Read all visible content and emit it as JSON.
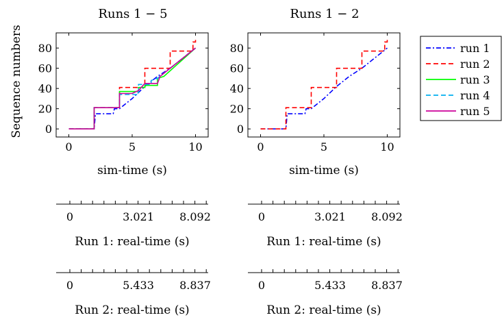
{
  "chart_data": [
    {
      "type": "line",
      "title": "Runs 1 − 5",
      "xlabel": "sim-time (s)",
      "ylabel": "Sequence numbers",
      "xlim": [
        -1,
        11
      ],
      "ylim": [
        -8,
        95
      ],
      "xticks": [
        0,
        5,
        10
      ],
      "yticks": [
        0,
        20,
        40,
        60,
        80
      ],
      "grid": false,
      "series": [
        {
          "name": "run 1",
          "color": "#0000ff",
          "dash": "dashdot",
          "points": [
            [
              0,
              0
            ],
            [
              2,
              0
            ],
            [
              2.1,
              15
            ],
            [
              3.5,
              15
            ],
            [
              3.6,
              20
            ],
            [
              4,
              20
            ],
            [
              5,
              30
            ],
            [
              6,
              42
            ],
            [
              7,
              52
            ],
            [
              8,
              60
            ],
            [
              10,
              80
            ]
          ]
        },
        {
          "name": "run 2",
          "color": "#ff0000",
          "dash": "dashed",
          "points": [
            [
              0,
              0
            ],
            [
              2,
              0
            ],
            [
              2,
              21
            ],
            [
              4,
              21
            ],
            [
              4,
              41
            ],
            [
              6,
              41
            ],
            [
              6,
              60
            ],
            [
              8,
              60
            ],
            [
              8,
              77
            ],
            [
              9.8,
              77
            ],
            [
              9.8,
              86
            ],
            [
              10,
              86
            ],
            [
              10,
              90
            ]
          ]
        },
        {
          "name": "run 3",
          "color": "#00ff00",
          "dash": "solid",
          "points": [
            [
              0,
              0
            ],
            [
              2,
              0
            ],
            [
              2,
              21
            ],
            [
              4,
              21
            ],
            [
              4,
              37
            ],
            [
              5.5,
              37
            ],
            [
              5.5,
              41
            ],
            [
              6,
              41
            ],
            [
              6,
              43
            ],
            [
              7,
              43
            ],
            [
              7,
              50
            ],
            [
              7.5,
              52
            ],
            [
              10,
              80
            ]
          ]
        },
        {
          "name": "run 4",
          "color": "#00aeef",
          "dash": "dashed",
          "points": [
            [
              0,
              0
            ],
            [
              2,
              0
            ],
            [
              2,
              21
            ],
            [
              4,
              21
            ],
            [
              4,
              34
            ],
            [
              5.5,
              34
            ],
            [
              5.5,
              44
            ],
            [
              6.5,
              44
            ],
            [
              6.5,
              48
            ],
            [
              7,
              50
            ],
            [
              10,
              80
            ]
          ]
        },
        {
          "name": "run 5",
          "color": "#cc0099",
          "dash": "solid",
          "points": [
            [
              0,
              0
            ],
            [
              2,
              0
            ],
            [
              2,
              21
            ],
            [
              4,
              21
            ],
            [
              4,
              35
            ],
            [
              5,
              35
            ],
            [
              5.5,
              38
            ],
            [
              6,
              45
            ],
            [
              7,
              45
            ],
            [
              7.2,
              52
            ],
            [
              10,
              80
            ]
          ]
        }
      ]
    },
    {
      "type": "line",
      "title": "Runs 1 − 2",
      "xlabel": "sim-time (s)",
      "xlim": [
        -1,
        11
      ],
      "ylim": [
        -8,
        95
      ],
      "xticks": [
        0,
        5,
        10
      ],
      "yticks": [
        0,
        20,
        40,
        60,
        80
      ],
      "grid": false,
      "series": [
        {
          "name": "run 1",
          "color": "#0000ff",
          "dash": "dashdot",
          "points": [
            [
              0,
              0
            ],
            [
              2,
              0
            ],
            [
              2.1,
              15
            ],
            [
              3.5,
              15
            ],
            [
              3.6,
              20
            ],
            [
              4,
              20
            ],
            [
              5,
              30
            ],
            [
              6,
              42
            ],
            [
              7,
              52
            ],
            [
              8,
              60
            ],
            [
              10,
              80
            ]
          ]
        },
        {
          "name": "run 2",
          "color": "#ff0000",
          "dash": "dashed",
          "points": [
            [
              0,
              0
            ],
            [
              2,
              0
            ],
            [
              2,
              21
            ],
            [
              4,
              21
            ],
            [
              4,
              41
            ],
            [
              6,
              41
            ],
            [
              6,
              60
            ],
            [
              8,
              60
            ],
            [
              8,
              77
            ],
            [
              9.8,
              77
            ],
            [
              9.8,
              86
            ],
            [
              10,
              86
            ],
            [
              10,
              90
            ]
          ]
        }
      ]
    }
  ],
  "legend": {
    "placement": "right",
    "entries": [
      {
        "label": "run 1",
        "color": "#0000ff",
        "dash": "dashdot"
      },
      {
        "label": "run 2",
        "color": "#ff0000",
        "dash": "dashed"
      },
      {
        "label": "run 3",
        "color": "#00ff00",
        "dash": "solid"
      },
      {
        "label": "run 4",
        "color": "#00aeef",
        "dash": "dashed"
      },
      {
        "label": "run 5",
        "color": "#cc0099",
        "dash": "solid"
      }
    ]
  },
  "secondary_axes": [
    {
      "label": "Run 1: real-time (s)",
      "ticks": [
        "0",
        "3.021",
        "8.092"
      ]
    },
    {
      "label": "Run 2: real-time (s)",
      "ticks": [
        "0",
        "5.433",
        "8.837"
      ]
    }
  ]
}
